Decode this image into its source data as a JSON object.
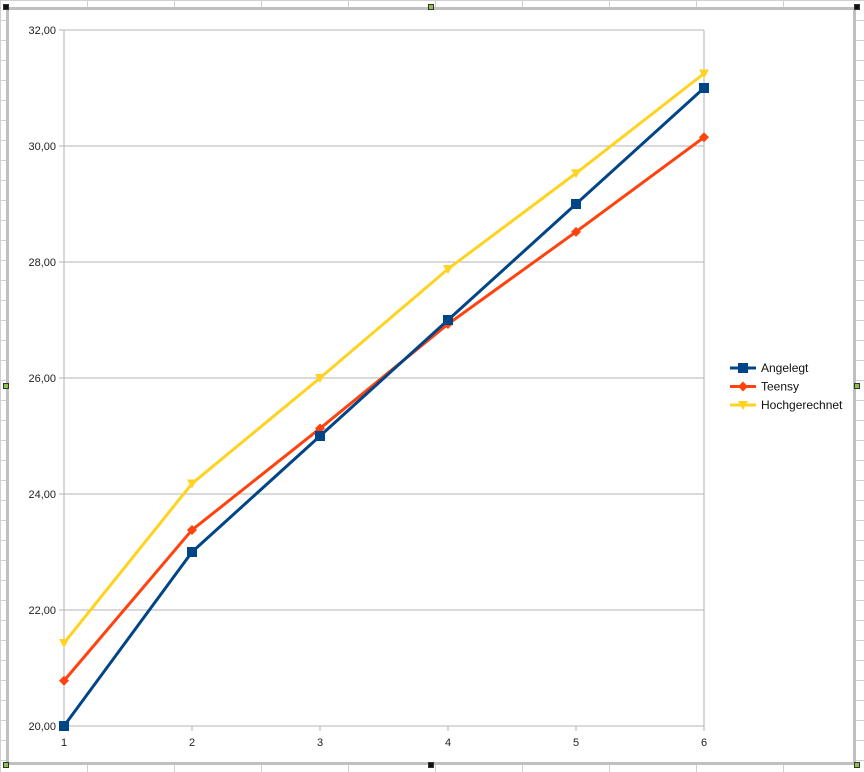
{
  "chart_data": {
    "type": "line",
    "title": "",
    "xlabel": "",
    "ylabel": "",
    "x": [
      1,
      2,
      3,
      4,
      5,
      6
    ],
    "x_tick_labels": [
      "1",
      "2",
      "3",
      "4",
      "5",
      "6"
    ],
    "ylim": [
      20,
      32
    ],
    "y_ticks": [
      20,
      22,
      24,
      26,
      28,
      30,
      32
    ],
    "y_tick_labels": [
      "20,00",
      "22,00",
      "24,00",
      "26,00",
      "28,00",
      "30,00",
      "32,00"
    ],
    "grid": "horizontal",
    "legend_position": "right",
    "series": [
      {
        "name": "Angelegt",
        "color": "#004586",
        "marker": "square",
        "values": [
          20.0,
          23.0,
          25.0,
          27.0,
          29.0,
          31.0
        ]
      },
      {
        "name": "Teensy",
        "color": "#ff420e",
        "marker": "diamond",
        "values": [
          20.78,
          23.38,
          25.13,
          26.93,
          28.52,
          30.15
        ]
      },
      {
        "name": "Hochgerechnet",
        "color": "#ffd320",
        "marker": "triangle-down",
        "values": [
          21.43,
          24.18,
          26.0,
          27.88,
          29.53,
          31.25
        ]
      }
    ]
  }
}
